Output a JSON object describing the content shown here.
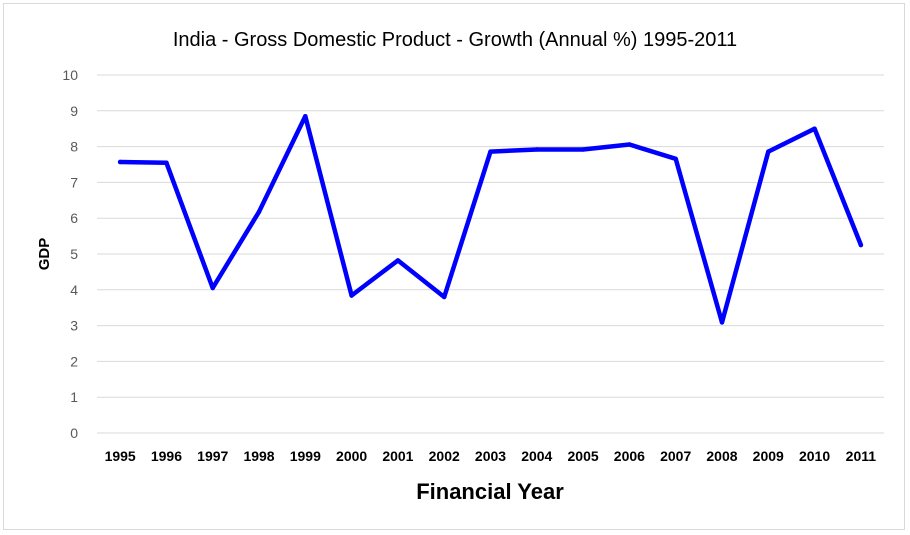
{
  "chart_data": {
    "type": "line",
    "title": "India - Gross Domestic Product - Growth (Annual %) 1995-2011",
    "xlabel": "Financial Year",
    "ylabel": "GDP",
    "ylim": [
      0,
      10
    ],
    "yticks": [
      "0",
      "1",
      "2",
      "3",
      "4",
      "5",
      "6",
      "7",
      "8",
      "9",
      "10"
    ],
    "grid": true,
    "legend": "none",
    "categories": [
      "1995",
      "1996",
      "1997",
      "1998",
      "1999",
      "2000",
      "2001",
      "2002",
      "2003",
      "2004",
      "2005",
      "2006",
      "2007",
      "2008",
      "2009",
      "2010",
      "2011"
    ],
    "series": [
      {
        "color": "#0000ff",
        "values": [
          7.57,
          7.55,
          4.05,
          6.18,
          8.85,
          3.84,
          4.82,
          3.8,
          7.86,
          7.92,
          7.92,
          8.06,
          7.66,
          3.09,
          7.86,
          8.5,
          5.25
        ]
      }
    ]
  }
}
